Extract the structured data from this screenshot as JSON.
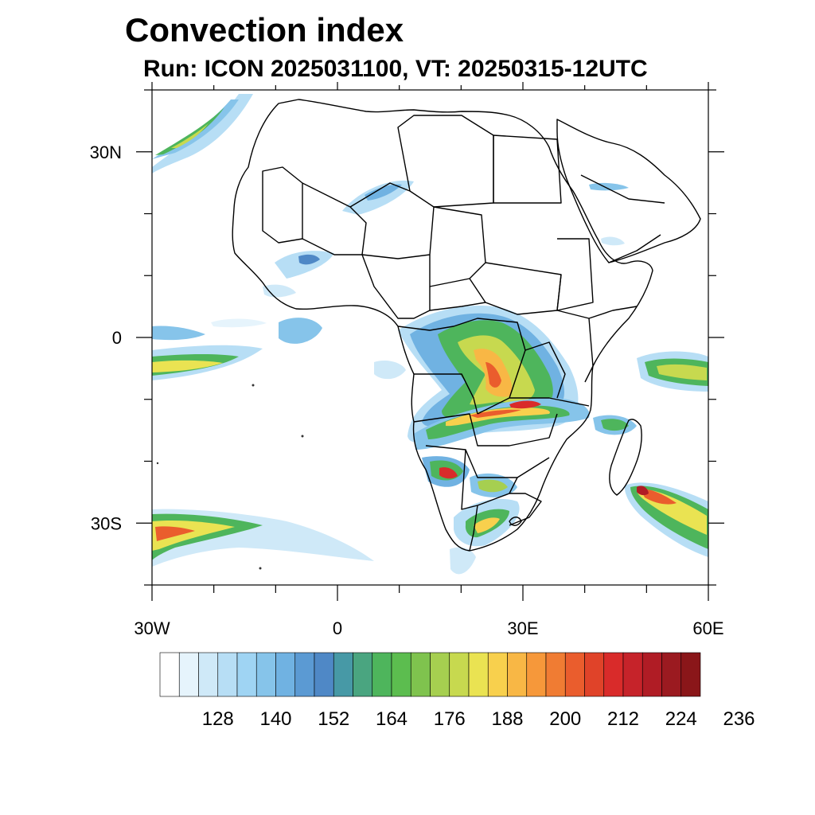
{
  "header": {
    "title": "Convection index",
    "subtitle": "Run: ICON 2025031100,  VT: 20250315-12UTC"
  },
  "map": {
    "lon_range": [
      -30,
      60
    ],
    "lat_range": [
      -40,
      40
    ],
    "y_axis_labels": [
      {
        "lat": 30,
        "text": "30N"
      },
      {
        "lat": 0,
        "text": "0"
      },
      {
        "lat": -30,
        "text": "30S"
      }
    ],
    "x_axis_labels": [
      {
        "lon": -30,
        "text": "30W"
      },
      {
        "lon": 0,
        "text": "0"
      },
      {
        "lon": 30,
        "text": "30E"
      },
      {
        "lon": 60,
        "text": "60E"
      }
    ]
  },
  "colorbar": {
    "colors": [
      "#ffffff",
      "#e6f4fc",
      "#cfe9f8",
      "#b7def5",
      "#9fd4f3",
      "#86c4ea",
      "#70b2e2",
      "#5b9ad3",
      "#4f88c6",
      "#4799a6",
      "#4aa580",
      "#4eb55c",
      "#5cbd4f",
      "#7fc34e",
      "#a6cf50",
      "#c7d94f",
      "#eae352",
      "#f8d04d",
      "#f8b745",
      "#f6983a",
      "#f07c33",
      "#ea5d2d",
      "#e04329",
      "#d92b2a",
      "#c6232a",
      "#b01c25",
      "#9b1a20",
      "#8a1619"
    ],
    "labels": [
      "128",
      "140",
      "152",
      "164",
      "176",
      "188",
      "200",
      "212",
      "224",
      "236"
    ]
  }
}
